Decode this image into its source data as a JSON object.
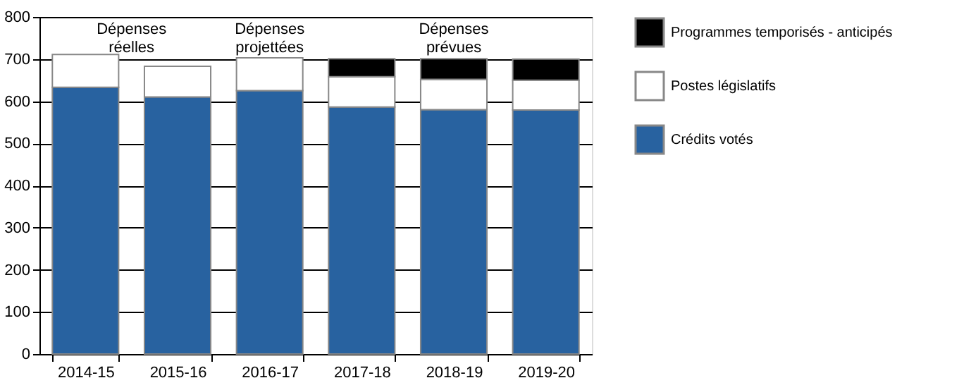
{
  "chart_data": {
    "type": "bar",
    "stacked": true,
    "categories": [
      "2014-15",
      "2015-16",
      "2016-17",
      "2017-18",
      "2018-19",
      "2019-20"
    ],
    "series": [
      {
        "name": "Crédits votés",
        "color": "#2862a0",
        "values": [
          633,
          610,
          625,
          586,
          580,
          579
        ]
      },
      {
        "name": "Postes législatifs",
        "color": "#ffffff",
        "values": [
          78,
          73,
          78,
          72,
          72,
          71
        ]
      },
      {
        "name": "Programmes temporisés - anticipés",
        "color": "#000000",
        "values": [
          null,
          null,
          null,
          43,
          49,
          50
        ]
      }
    ],
    "ylim": [
      0,
      800
    ],
    "yticks": [
      0,
      100,
      200,
      300,
      400,
      500,
      600,
      700,
      800
    ],
    "grid": "y",
    "legend": "top right",
    "annotations": [
      "Dépenses\nréelles",
      "Dépenses\nprojettées",
      "Dépenses\nprévues"
    ]
  }
}
